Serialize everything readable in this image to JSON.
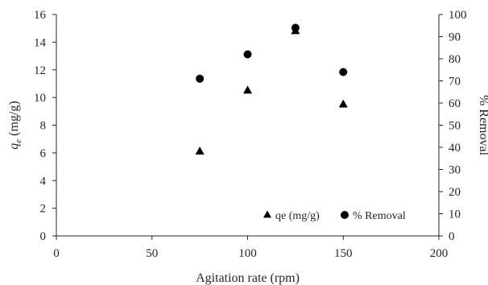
{
  "chart_data": {
    "type": "scatter",
    "x": [
      75,
      100,
      125,
      150
    ],
    "series": [
      {
        "name": "qe (mg/g)",
        "axis": "left",
        "marker": "triangle",
        "values": [
          6.1,
          10.5,
          14.8,
          9.5
        ]
      },
      {
        "name": "% Removal",
        "axis": "right",
        "marker": "circle",
        "values": [
          71,
          82,
          94,
          74
        ]
      }
    ],
    "xlabel": "Agitation rate (rpm)",
    "ylabel_left": {
      "symbol": "q",
      "subscript": "e",
      "unit": " (mg/g)"
    },
    "ylabel_right": "% Removal",
    "xlim": [
      0,
      200
    ],
    "ylim_left": [
      0,
      16
    ],
    "ylim_right": [
      0,
      100
    ],
    "x_ticks": [
      0,
      50,
      100,
      150,
      200
    ],
    "y_ticks_left": [
      0,
      2,
      4,
      6,
      8,
      10,
      12,
      14,
      16
    ],
    "y_ticks_right": [
      0,
      10,
      20,
      30,
      40,
      50,
      60,
      70,
      80,
      90,
      100
    ],
    "grid": false,
    "legend_position": "bottom-right",
    "marker_color": "#000000"
  }
}
